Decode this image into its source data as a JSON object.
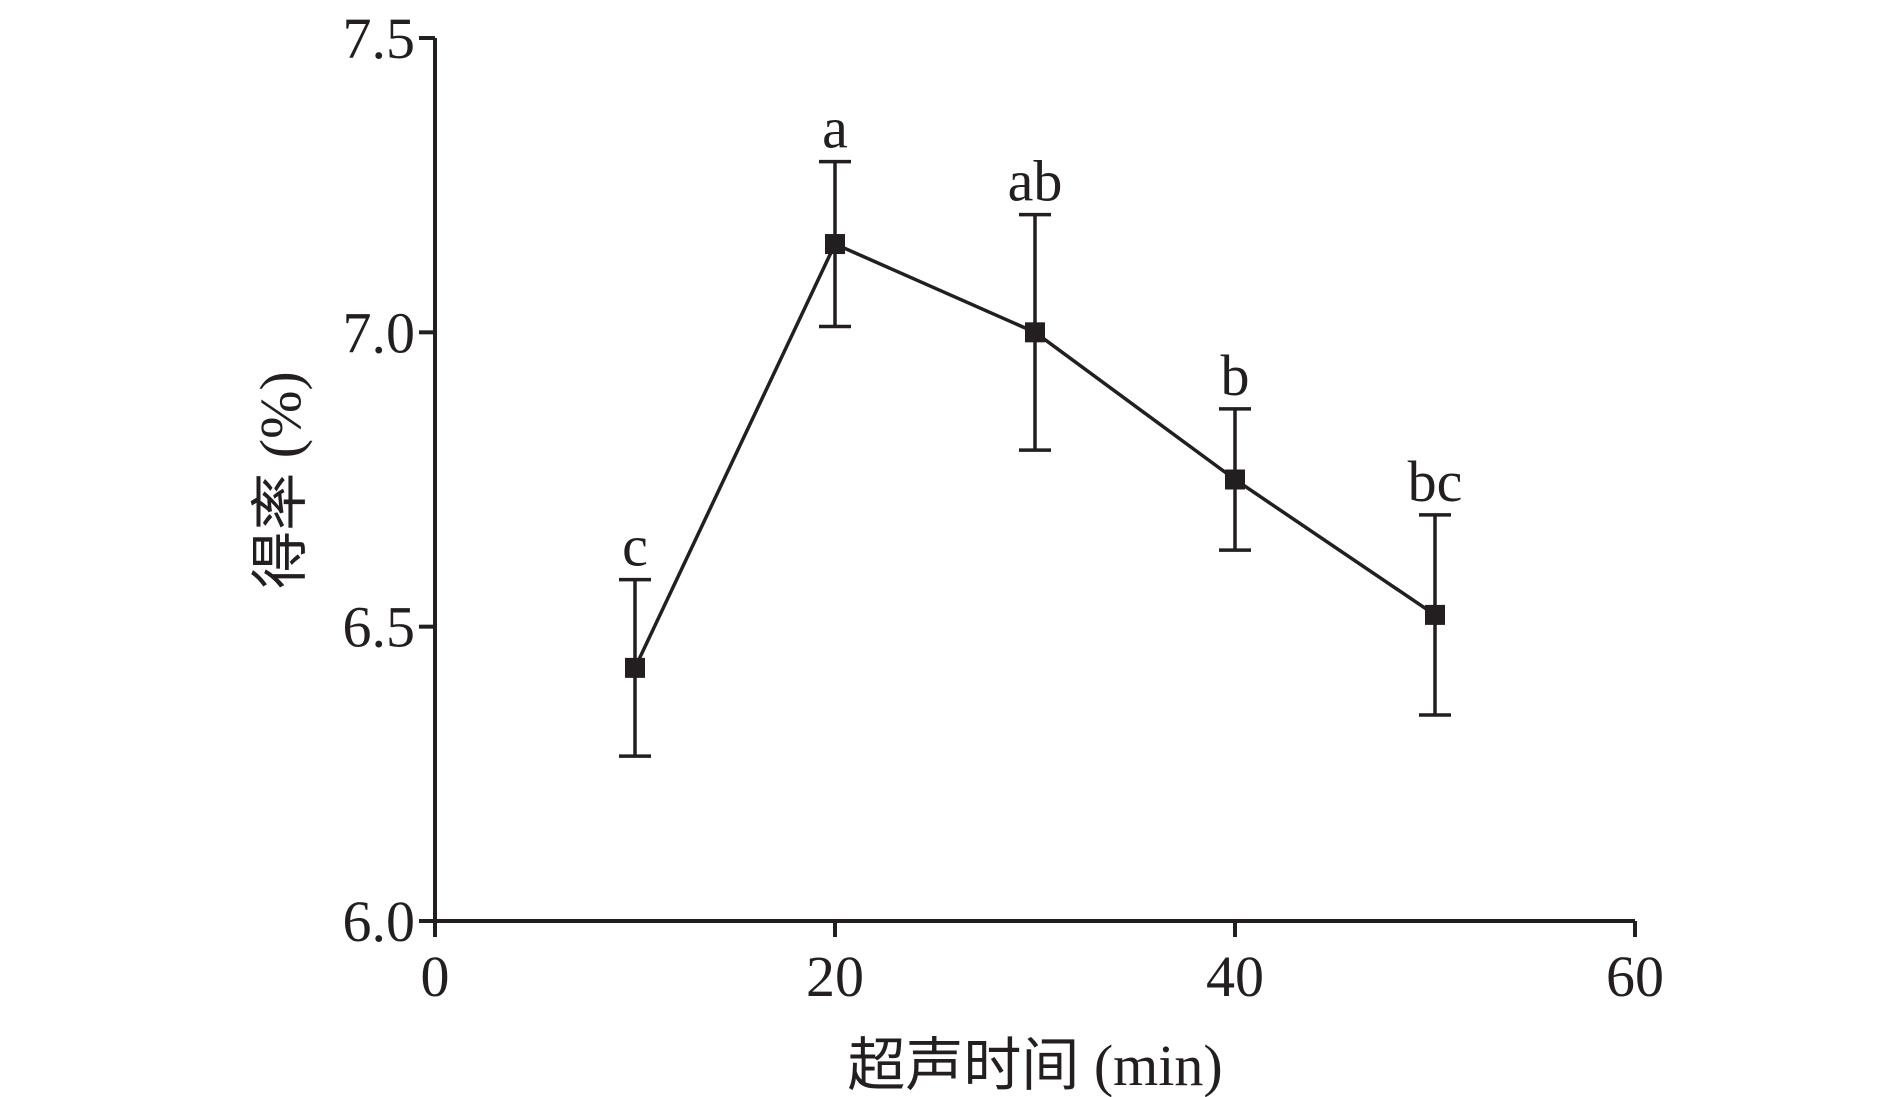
{
  "chart_data": {
    "type": "line",
    "xlabel": "超声时间 (min)",
    "ylabel": "得率 (%)",
    "xlim": [
      0,
      60
    ],
    "ylim": [
      6.0,
      7.5
    ],
    "x_ticks": [
      0,
      20,
      40,
      60
    ],
    "x_tick_labels": [
      "0",
      "20",
      "40",
      "60"
    ],
    "y_ticks": [
      6.0,
      6.5,
      7.0,
      7.5
    ],
    "y_tick_labels": [
      "6.0",
      "6.5",
      "7.0",
      "7.5"
    ],
    "grid": false,
    "series": [
      {
        "x": [
          10,
          20,
          30,
          40,
          50
        ],
        "y": [
          6.43,
          7.15,
          7.0,
          6.75,
          6.52
        ],
        "error": [
          0.15,
          0.14,
          0.2,
          0.12,
          0.17
        ],
        "labels": [
          "c",
          "a",
          "ab",
          "b",
          "bc"
        ],
        "color": "#231f20",
        "marker": "square"
      }
    ]
  }
}
